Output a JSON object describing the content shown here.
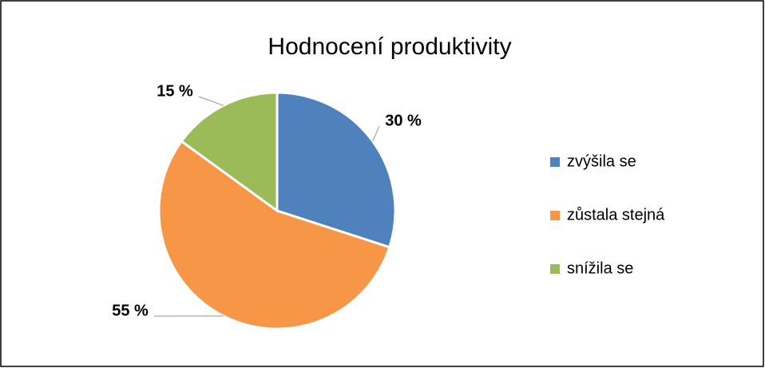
{
  "chart_data": {
    "type": "pie",
    "title": "Hodnocení produktivity",
    "categories": [
      "zvýšila se",
      "zůstala stejná",
      "snížila se"
    ],
    "values": [
      30,
      55,
      15
    ],
    "value_labels": [
      "30 %",
      "55 %",
      "15 %"
    ],
    "colors": [
      "#4f81bd",
      "#f79646",
      "#9bbb59"
    ],
    "legend": "right"
  }
}
